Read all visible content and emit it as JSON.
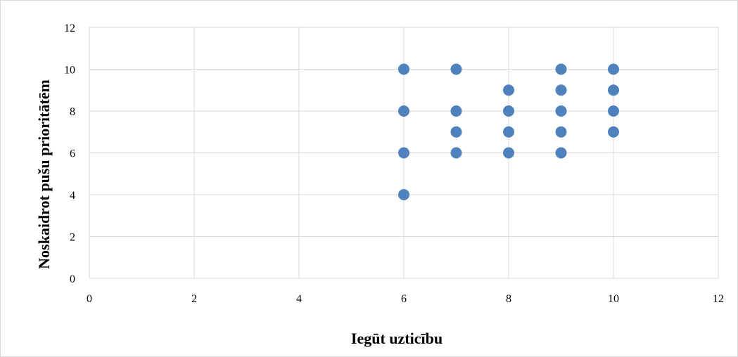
{
  "chart_data": {
    "type": "scatter",
    "xlabel": "Iegūt uzticību",
    "ylabel": "Noskaidrot pušu prioritātēm",
    "xlim": [
      0,
      12
    ],
    "ylim": [
      0,
      12
    ],
    "x_ticks": [
      0,
      2,
      4,
      6,
      8,
      10,
      12
    ],
    "y_ticks": [
      0,
      2,
      4,
      6,
      8,
      10,
      12
    ],
    "grid": true,
    "legend": "none",
    "marker_color": "#4f81bd",
    "gridline_color": "#d9d9d9",
    "series": [
      {
        "points": [
          {
            "x": 6,
            "y": 10
          },
          {
            "x": 6,
            "y": 8
          },
          {
            "x": 6,
            "y": 6
          },
          {
            "x": 6,
            "y": 4
          },
          {
            "x": 7,
            "y": 10
          },
          {
            "x": 7,
            "y": 8
          },
          {
            "x": 7,
            "y": 7
          },
          {
            "x": 7,
            "y": 6
          },
          {
            "x": 8,
            "y": 9
          },
          {
            "x": 8,
            "y": 8
          },
          {
            "x": 8,
            "y": 7
          },
          {
            "x": 8,
            "y": 6
          },
          {
            "x": 9,
            "y": 10
          },
          {
            "x": 9,
            "y": 9
          },
          {
            "x": 9,
            "y": 8
          },
          {
            "x": 9,
            "y": 7
          },
          {
            "x": 9,
            "y": 6
          },
          {
            "x": 10,
            "y": 10
          },
          {
            "x": 10,
            "y": 9
          },
          {
            "x": 10,
            "y": 8
          },
          {
            "x": 10,
            "y": 7
          }
        ]
      }
    ]
  }
}
